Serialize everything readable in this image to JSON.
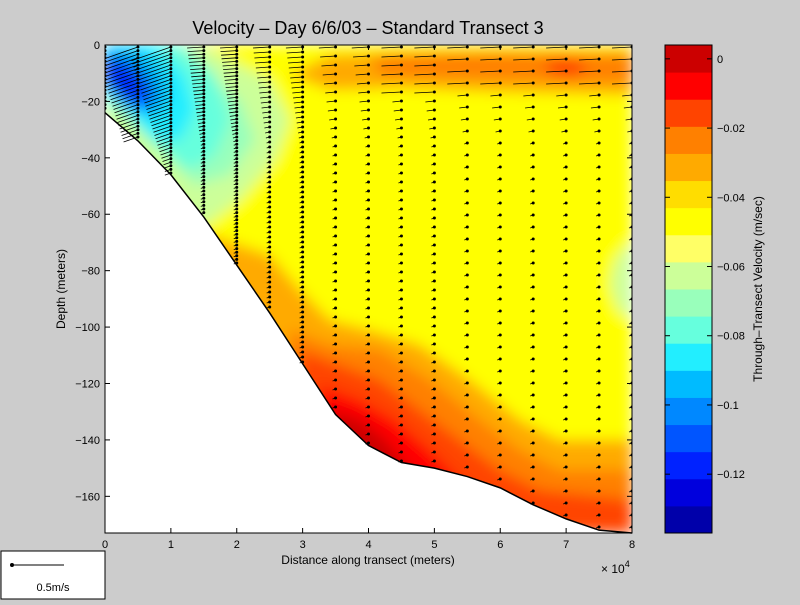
{
  "chart_data": {
    "type": "heatmap",
    "title": "Velocity – Day 6/6/03 – Standard Transect 3",
    "xlabel": "Distance along transect (meters)",
    "x_multiplier": "× 10",
    "x_multiplier_exp": "4",
    "ylabel": "Depth (meters)",
    "xlim": [
      0,
      8
    ],
    "ylim": [
      -173,
      0
    ],
    "x_ticks": [
      0,
      1,
      2,
      3,
      4,
      5,
      6,
      7,
      8
    ],
    "y_ticks": [
      0,
      -20,
      -40,
      -60,
      -80,
      -100,
      -120,
      -140,
      -160
    ],
    "colorbar": {
      "label": "Through–Transect Velocity (m/sec)",
      "lim": [
        -0.137,
        0.004
      ],
      "ticks": [
        0,
        -0.02,
        -0.04,
        -0.06,
        -0.08,
        -0.1,
        -0.12
      ],
      "colors": [
        "#0000AA",
        "#0000DD",
        "#0022FF",
        "#0055FF",
        "#0088FF",
        "#00BBFF",
        "#22EEFF",
        "#66FFDD",
        "#99FFBB",
        "#CCFF99",
        "#FFFF66",
        "#FFFF00",
        "#FFDD00",
        "#FFAA00",
        "#FF8000",
        "#FF4400",
        "#FF0000",
        "#CC0000"
      ]
    },
    "bottom_profile": [
      [
        0,
        -24
      ],
      [
        0.5,
        -34
      ],
      [
        1,
        -46
      ],
      [
        1.5,
        -61
      ],
      [
        2,
        -78
      ],
      [
        2.5,
        -95
      ],
      [
        3,
        -113
      ],
      [
        3.5,
        -131
      ],
      [
        4,
        -142
      ],
      [
        4.5,
        -148
      ],
      [
        5,
        -150
      ],
      [
        5.5,
        -153
      ],
      [
        6,
        -157
      ],
      [
        6.5,
        -163
      ],
      [
        7,
        -168
      ],
      [
        7.5,
        -172
      ],
      [
        8,
        -173
      ]
    ],
    "vector_x_positions": [
      0,
      0.5,
      1,
      1.5,
      2,
      2.5,
      3,
      3.5,
      4,
      4.5,
      5,
      5.5,
      6,
      6.5,
      7,
      7.5,
      8
    ],
    "scale_bar": {
      "label": "0.5m/s",
      "value": 0.5
    }
  }
}
